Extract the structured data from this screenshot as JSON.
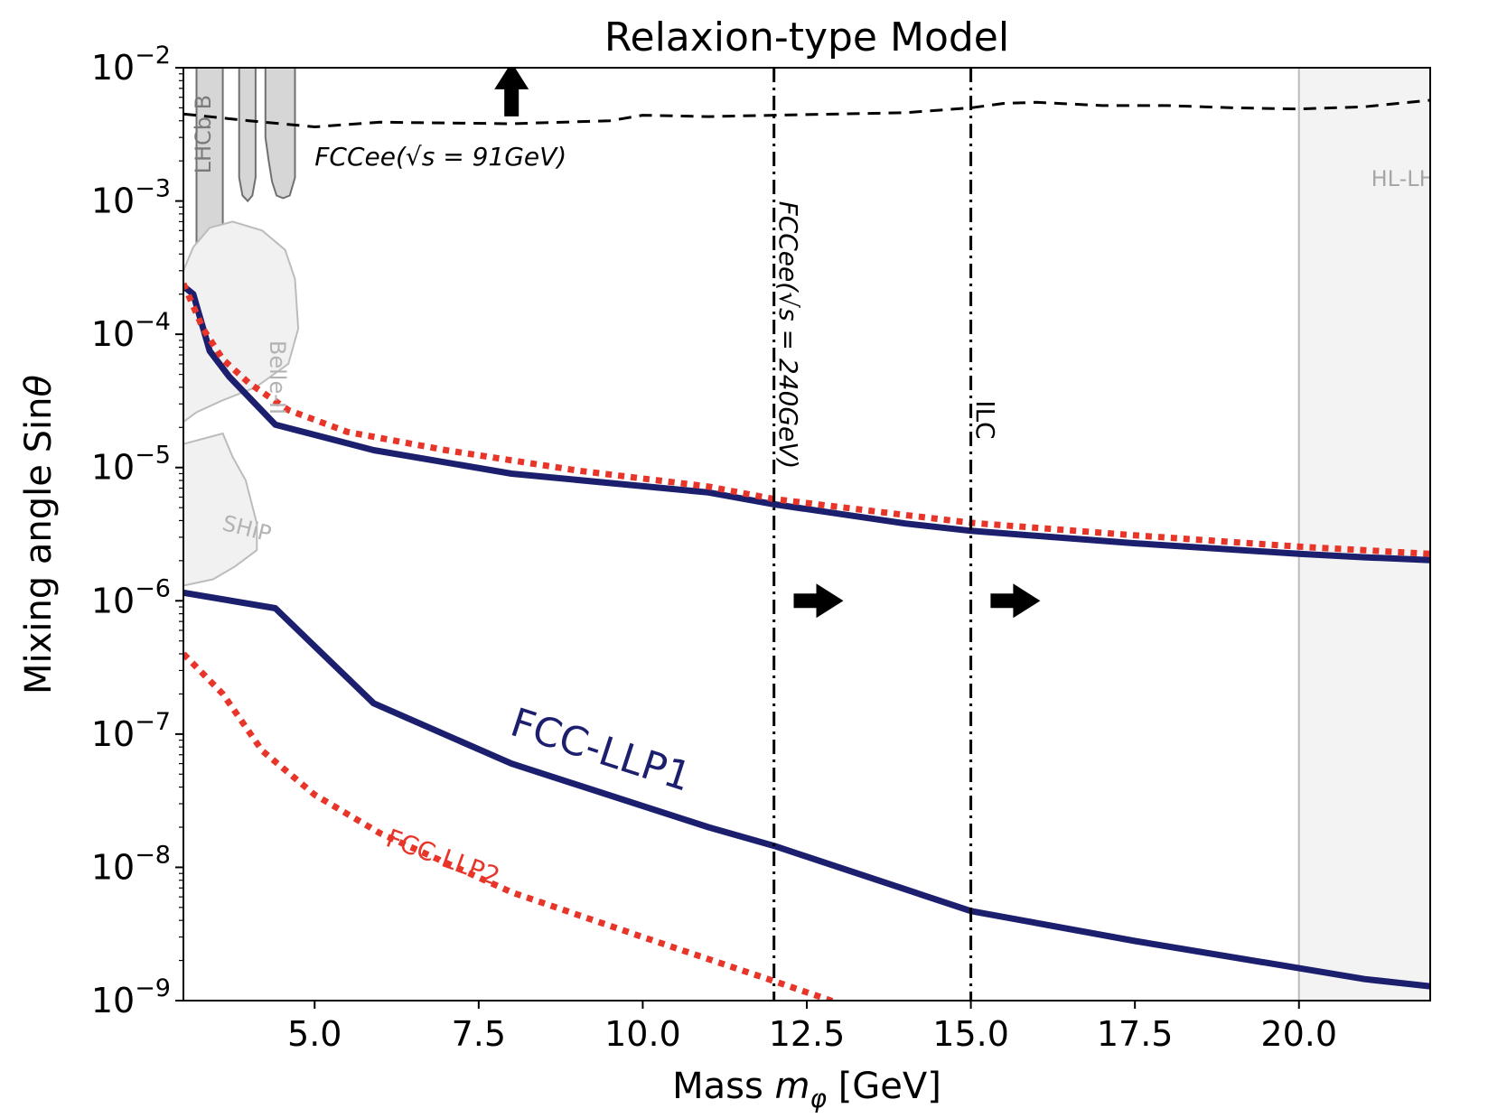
{
  "chart_data": {
    "type": "line",
    "title": "Relaxion-type Model",
    "xlabel": "Mass m_φ [GeV]",
    "xlabel_parts": {
      "pre": "Mass ",
      "var": "m",
      "sub": "φ",
      "post": " [GeV]"
    },
    "ylabel": "Mixing angle Sinθ",
    "ylabel_parts": {
      "pre": "Mixing angle Sin",
      "var": "θ"
    },
    "xlim": [
      3.0,
      22.0
    ],
    "ylim_log10": [
      -9,
      -2
    ],
    "y_scale": "log",
    "x_ticks": [
      {
        "v": 5.0,
        "label": "5.0"
      },
      {
        "v": 7.5,
        "label": "7.5"
      },
      {
        "v": 10.0,
        "label": "10.0"
      },
      {
        "v": 12.5,
        "label": "12.5"
      },
      {
        "v": 15.0,
        "label": "15.0"
      },
      {
        "v": 17.5,
        "label": "17.5"
      },
      {
        "v": 20.0,
        "label": "20.0"
      }
    ],
    "y_ticks": [
      {
        "exp": -2,
        "base": "10",
        "sup": "−2"
      },
      {
        "exp": -3,
        "base": "10",
        "sup": "−3"
      },
      {
        "exp": -4,
        "base": "10",
        "sup": "−4"
      },
      {
        "exp": -5,
        "base": "10",
        "sup": "−5"
      },
      {
        "exp": -6,
        "base": "10",
        "sup": "−6"
      },
      {
        "exp": -7,
        "base": "10",
        "sup": "−7"
      },
      {
        "exp": -8,
        "base": "10",
        "sup": "−8"
      },
      {
        "exp": -9,
        "base": "10",
        "sup": "−9"
      }
    ],
    "series": [
      {
        "name": "FCC-LLP1",
        "key": "llp1-lower",
        "color": "#1c1f6e",
        "style": "solid",
        "width": 7,
        "x": [
          3.0,
          4.4,
          5.9,
          8.0,
          11.0,
          12.0,
          15.0,
          17.5,
          20.0,
          21.0,
          22.0
        ],
        "y": [
          1.15e-06,
          8.8e-07,
          1.7e-07,
          6e-08,
          2e-08,
          1.45e-08,
          4.7e-09,
          2.8e-09,
          1.75e-09,
          1.45e-09,
          1.28e-09
        ]
      },
      {
        "key": "llp1-upper",
        "color": "#1c1f6e",
        "style": "solid",
        "width": 7,
        "x": [
          3.0,
          3.15,
          3.4,
          3.7,
          4.4,
          5.9,
          8.0,
          11.0,
          12.0,
          14.0,
          15.0,
          17.5,
          20.0,
          21.0,
          22.0
        ],
        "y": [
          0.00023,
          0.0002,
          7.5e-05,
          4.8e-05,
          2.1e-05,
          1.35e-05,
          9e-06,
          6.5e-06,
          5.3e-06,
          3.8e-06,
          3.35e-06,
          2.7e-06,
          2.25e-06,
          2.12e-06,
          2.02e-06
        ]
      },
      {
        "name": "FCC-LLP2",
        "key": "llp2-lower",
        "color": "#e8352a",
        "style": "dotted",
        "width": 7,
        "x": [
          3.0,
          3.6,
          4.2,
          5.0,
          6.0,
          8.0,
          10.0,
          12.0,
          13.0
        ],
        "y": [
          4e-07,
          2e-07,
          7.5e-08,
          3.5e-08,
          1.8e-08,
          6.5e-09,
          3e-09,
          1.4e-09,
          9.5e-10
        ]
      },
      {
        "key": "llp2-upper",
        "color": "#e8352a",
        "style": "dotted",
        "width": 7,
        "x": [
          3.0,
          3.3,
          3.6,
          4.0,
          4.6,
          5.5,
          7.0,
          9.0,
          11.0,
          12.0,
          14.0,
          15.0,
          17.5,
          20.0,
          22.0
        ],
        "y": [
          0.00024,
          0.00011,
          6.5e-05,
          4.3e-05,
          2.7e-05,
          1.85e-05,
          1.35e-05,
          9.5e-06,
          7.2e-06,
          5.8e-06,
          4.4e-06,
          3.85e-06,
          3.1e-06,
          2.55e-06,
          2.25e-06
        ]
      },
      {
        "key": "fccee-91",
        "color": "#000000",
        "style": "dashed",
        "width": 3,
        "x": [
          3.0,
          4.0,
          5.0,
          6.0,
          8.0,
          9.5,
          10.0,
          11.0,
          12.0,
          13.0,
          14.0,
          15.0,
          15.5,
          16.0,
          17.0,
          18.0,
          19.0,
          20.0,
          21.0,
          22.0
        ],
        "y": [
          0.0045,
          0.004,
          0.0036,
          0.0039,
          0.0038,
          0.004,
          0.0044,
          0.0043,
          0.0044,
          0.0045,
          0.0046,
          0.005,
          0.0054,
          0.0055,
          0.0052,
          0.0052,
          0.005,
          0.0049,
          0.0051,
          0.0057
        ]
      }
    ],
    "vlines": [
      {
        "key": "fccee-240",
        "x": 12.0,
        "style": "dashdot",
        "color": "#000000"
      },
      {
        "key": "ilc",
        "x": 15.0,
        "style": "dashdot",
        "color": "#000000"
      }
    ],
    "regions": [
      {
        "key": "lhcb-b",
        "label": "LHCb B",
        "fill": "#d6d6d6",
        "stroke": "#707070",
        "polygons": [
          [
            [
              3.2,
              0.01
            ],
            [
              3.6,
              0.01
            ],
            [
              3.6,
              0.00015
            ],
            [
              3.2,
              0.00015
            ]
          ],
          [
            [
              3.85,
              0.01
            ],
            [
              4.1,
              0.01
            ],
            [
              4.1,
              0.0015
            ],
            [
              4.05,
              0.0011
            ],
            [
              3.98,
              0.001
            ],
            [
              3.9,
              0.0011
            ],
            [
              3.85,
              0.0015
            ]
          ],
          [
            [
              4.25,
              0.01
            ],
            [
              4.7,
              0.01
            ],
            [
              4.7,
              0.0015
            ],
            [
              4.62,
              0.0011
            ],
            [
              4.52,
              0.00105
            ],
            [
              4.42,
              0.0011
            ],
            [
              4.35,
              0.0014
            ],
            [
              4.3,
              0.002
            ],
            [
              4.25,
              0.003
            ]
          ]
        ]
      },
      {
        "key": "belle-ii",
        "label": "Belle-II",
        "fill": "#f1f1f1",
        "stroke": "#bcbcbc",
        "polygons": [
          [
            [
              3.0,
              2.2e-05
            ],
            [
              3.2,
              2.6e-05
            ],
            [
              3.6,
              3.2e-05
            ],
            [
              4.1,
              4e-05
            ],
            [
              4.6,
              6e-05
            ],
            [
              4.75,
              0.00011
            ],
            [
              4.7,
              0.00026
            ],
            [
              4.55,
              0.00043
            ],
            [
              4.2,
              0.0006
            ],
            [
              3.75,
              0.0007
            ],
            [
              3.4,
              0.00063
            ],
            [
              3.15,
              0.00045
            ],
            [
              3.0,
              0.0003
            ]
          ]
        ]
      },
      {
        "key": "ship",
        "label": "SHiP",
        "fill": "#f1f1f1",
        "stroke": "#bcbcbc",
        "polygons": [
          [
            [
              3.0,
              1.3e-06
            ],
            [
              3.45,
              1.45e-06
            ],
            [
              3.78,
              1.8e-06
            ],
            [
              4.12,
              2.4e-06
            ],
            [
              4.12,
              3.8e-06
            ],
            [
              3.95,
              8e-06
            ],
            [
              3.75,
              1.2e-05
            ],
            [
              3.6,
              1.8e-05
            ],
            [
              3.0,
              1.5e-05
            ]
          ]
        ]
      },
      {
        "key": "hl-lhc",
        "label": "HL-LHC",
        "fill": "#f3f3f3",
        "stroke": "#bcbcbc",
        "polygons": [
          [
            [
              20.0,
              0.01
            ],
            [
              22.0,
              0.01
            ],
            [
              22.0,
              1e-09
            ],
            [
              20.0,
              1e-09
            ]
          ]
        ]
      }
    ],
    "arrows": [
      {
        "key": "up-arrow",
        "direction": "up",
        "x": 8.0,
        "y": 0.0078
      },
      {
        "key": "right-arrow-fccee-240",
        "direction": "right",
        "x": 12.3,
        "y": 1e-06
      },
      {
        "key": "right-arrow-ilc",
        "direction": "right",
        "x": 15.3,
        "y": 1e-06
      }
    ],
    "annotations": [
      {
        "key": "label-fccee-91",
        "text": "FCCee(√s = 91GeV)",
        "color": "#000000",
        "style": "italic",
        "x": 5.0,
        "y": 0.0021,
        "rotate": 0,
        "size": 28
      },
      {
        "key": "label-fccee-240",
        "text": "FCCee(√s = 240GeV)",
        "color": "#000000",
        "style": "italic",
        "x": 12.2,
        "y": 0.001,
        "rotate": 90,
        "size": 28
      },
      {
        "key": "label-ilc",
        "text": "ILC",
        "color": "#000000",
        "style": "normal",
        "x": 15.2,
        "y": 3.2e-05,
        "rotate": 90,
        "size": 28
      },
      {
        "key": "label-hl-lhc",
        "text": "HL-LHC",
        "color": "#a6a6a6",
        "style": "normal",
        "x": 21.1,
        "y": 0.00145,
        "rotate": 0,
        "size": 24
      },
      {
        "key": "label-lhcb-b",
        "text": "LHCb B",
        "color": "#7a7a7a",
        "style": "normal",
        "x": 3.32,
        "y": 0.0016,
        "rotate": -90,
        "size": 24
      },
      {
        "key": "label-belle-ii",
        "text": "Belle-II",
        "color": "#b3b3b3",
        "style": "normal",
        "x": 4.42,
        "y": 9e-05,
        "rotate": 90,
        "size": 24
      },
      {
        "key": "label-ship",
        "text": "SHiP",
        "color": "#b3b3b3",
        "style": "normal",
        "x": 3.6,
        "y": 3.8e-06,
        "rotate": 14,
        "size": 24
      },
      {
        "key": "label-fcc-llp1",
        "text": "FCC-LLP1",
        "color": "#1c1f6e",
        "style": "normal",
        "x": 8.0,
        "y": 1.2e-07,
        "rotate": 18,
        "size": 44
      },
      {
        "key": "label-fcc-llp2",
        "text": "FCC-LLP2",
        "color": "#e8352a",
        "style": "normal",
        "x": 6.1,
        "y": 1.65e-08,
        "rotate": 20,
        "size": 28
      }
    ]
  }
}
